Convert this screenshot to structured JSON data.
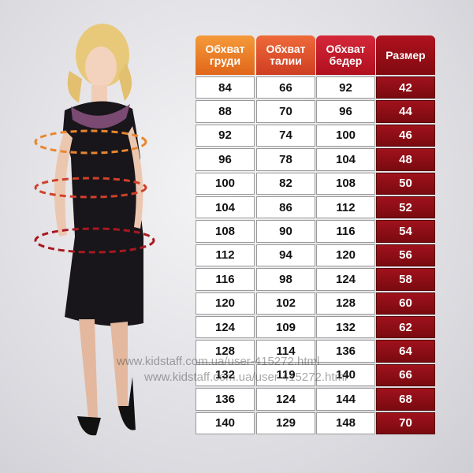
{
  "table": {
    "headers": [
      "Обхват\nгруди",
      "Обхват\nталии",
      "Обхват\nбедер",
      "Размер"
    ],
    "rows": [
      [
        84,
        66,
        92,
        42
      ],
      [
        88,
        70,
        96,
        44
      ],
      [
        92,
        74,
        100,
        46
      ],
      [
        96,
        78,
        104,
        48
      ],
      [
        100,
        82,
        108,
        50
      ],
      [
        104,
        86,
        112,
        52
      ],
      [
        108,
        90,
        116,
        54
      ],
      [
        112,
        94,
        120,
        56
      ],
      [
        116,
        98,
        124,
        58
      ],
      [
        120,
        102,
        128,
        60
      ],
      [
        124,
        109,
        132,
        62
      ],
      [
        128,
        114,
        136,
        64
      ],
      [
        132,
        119,
        140,
        66
      ],
      [
        136,
        124,
        144,
        68
      ],
      [
        140,
        129,
        148,
        70
      ]
    ]
  },
  "watermarks": [
    "www.kidstaff.com.ua/user-415272.html",
    "www.kidstaff.com.ua/user-415272.html"
  ]
}
